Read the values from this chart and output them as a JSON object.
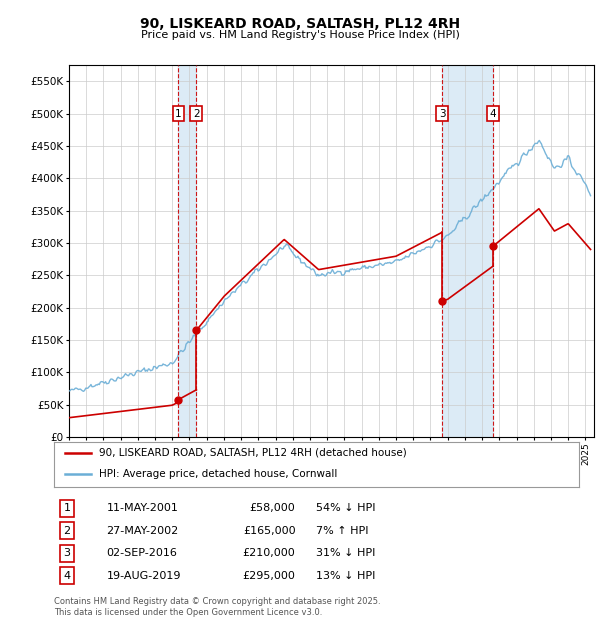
{
  "title": "90, LISKEARD ROAD, SALTASH, PL12 4RH",
  "subtitle": "Price paid vs. HM Land Registry's House Price Index (HPI)",
  "ylim": [
    0,
    575000
  ],
  "yticks": [
    0,
    50000,
    100000,
    150000,
    200000,
    250000,
    300000,
    350000,
    400000,
    450000,
    500000,
    550000
  ],
  "ytick_labels": [
    "£0",
    "£50K",
    "£100K",
    "£150K",
    "£200K",
    "£250K",
    "£300K",
    "£350K",
    "£400K",
    "£450K",
    "£500K",
    "£550K"
  ],
  "legend_label_red": "90, LISKEARD ROAD, SALTASH, PL12 4RH (detached house)",
  "legend_label_blue": "HPI: Average price, detached house, Cornwall",
  "footer": "Contains HM Land Registry data © Crown copyright and database right 2025.\nThis data is licensed under the Open Government Licence v3.0.",
  "transactions": [
    {
      "num": 1,
      "date": "11-MAY-2001",
      "price": 58000,
      "pct": "54%",
      "dir": "↓",
      "x_year": 2001.36
    },
    {
      "num": 2,
      "date": "27-MAY-2002",
      "price": 165000,
      "pct": "7%",
      "dir": "↑",
      "x_year": 2002.4
    },
    {
      "num": 3,
      "date": "02-SEP-2016",
      "price": 210000,
      "pct": "31%",
      "dir": "↓",
      "x_year": 2016.67
    },
    {
      "num": 4,
      "date": "19-AUG-2019",
      "price": 295000,
      "pct": "13%",
      "dir": "↓",
      "x_year": 2019.63
    }
  ],
  "hpi_color": "#6baed6",
  "sale_color": "#cc0000",
  "vline_color": "#cc0000",
  "shade_color": "#d6e8f5",
  "background_color": "#ffffff",
  "grid_color": "#cccccc",
  "xlim_start": 1995,
  "xlim_end": 2025.5
}
